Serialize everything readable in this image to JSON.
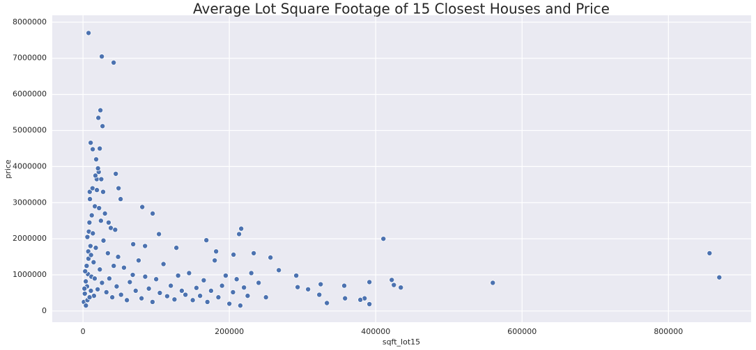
{
  "chart_data": {
    "type": "scatter",
    "title": "Average Lot Square Footage of 15 Closest Houses and Price",
    "xlabel": "sqft_lot15",
    "ylabel": "price",
    "color": "#4c72b0",
    "grid": true,
    "xlim": [
      -42000,
      913000
    ],
    "xticks": [
      0,
      200000,
      400000,
      600000,
      800000
    ],
    "ylim": [
      -310000,
      8190000
    ],
    "yticks": [
      0,
      1000000,
      2000000,
      3000000,
      4000000,
      5000000,
      6000000,
      7000000,
      8000000
    ],
    "x": [
      1200,
      2500,
      3800,
      5000,
      6100,
      7200,
      8000,
      9500,
      10800,
      12000,
      4000,
      5500,
      6800,
      7500,
      8800,
      9200,
      10200,
      11500,
      13000,
      14500,
      15000,
      16200,
      17500,
      18800,
      20000,
      21500,
      23000,
      24500,
      26000,
      28000,
      30000,
      32000,
      34000,
      36000,
      38000,
      40000,
      42000,
      44000,
      46000,
      48000,
      2000,
      3000,
      6000,
      9000,
      11000,
      13500,
      16000,
      19000,
      22000,
      25000,
      52000,
      56000,
      60000,
      64000,
      68000,
      72000,
      76000,
      80000,
      85000,
      90000,
      95000,
      100000,
      105000,
      110000,
      115000,
      120000,
      125000,
      130000,
      135000,
      140000,
      145000,
      150000,
      155000,
      160000,
      165000,
      170000,
      175000,
      180000,
      185000,
      190000,
      195000,
      200000,
      205000,
      210000,
      215000,
      220000,
      225000,
      230000,
      240000,
      250000,
      7600,
      25700,
      41900,
      23800,
      26700,
      21000,
      10500,
      22900,
      13300,
      44800,
      48600,
      51400,
      81000,
      95200,
      103800,
      168600,
      216200,
      213300,
      410500,
      856200,
      869500,
      560000,
      421900,
      424800,
      434300,
      391400,
      391400,
      384800,
      379000,
      357000,
      358100,
      324800,
      322900,
      333300,
      307600,
      291400,
      293300,
      267600,
      256200,
      233300,
      205700,
      181900,
      127600,
      84800,
      68600,
      18000,
      20500,
      17000,
      27500,
      35000
    ],
    "values": [
      250000,
      480000,
      820000,
      1250000,
      300000,
      1650000,
      2200000,
      3100000,
      560000,
      2650000,
      150000,
      680000,
      1020000,
      1450000,
      2450000,
      3300000,
      1800000,
      950000,
      3400000,
      1350000,
      420000,
      2900000,
      1750000,
      3650000,
      600000,
      3850000,
      1150000,
      2500000,
      780000,
      1950000,
      2700000,
      520000,
      1600000,
      900000,
      2300000,
      380000,
      1250000,
      2250000,
      680000,
      1500000,
      620000,
      1100000,
      2050000,
      380000,
      1550000,
      2150000,
      900000,
      3350000,
      2850000,
      3650000,
      450000,
      1200000,
      300000,
      800000,
      1000000,
      560000,
      1400000,
      350000,
      950000,
      620000,
      250000,
      880000,
      500000,
      1300000,
      410000,
      700000,
      320000,
      980000,
      560000,
      450000,
      1050000,
      300000,
      640000,
      420000,
      850000,
      250000,
      560000,
      1400000,
      380000,
      700000,
      980000,
      200000,
      520000,
      880000,
      150000,
      650000,
      420000,
      1050000,
      780000,
      380000,
      7700000,
      7050000,
      6880000,
      5560000,
      5120000,
      5350000,
      4660000,
      4500000,
      4480000,
      3800000,
      3400000,
      3100000,
      2880000,
      2700000,
      2130000,
      1960000,
      2280000,
      2130000,
      2000000,
      1600000,
      930000,
      780000,
      860000,
      720000,
      650000,
      800000,
      190000,
      350000,
      310000,
      700000,
      350000,
      740000,
      450000,
      220000,
      600000,
      980000,
      660000,
      1130000,
      1480000,
      1600000,
      1560000,
      1650000,
      1750000,
      1800000,
      1850000,
      4200000,
      3950000,
      3750000,
      3300000,
      2450000
    ]
  }
}
